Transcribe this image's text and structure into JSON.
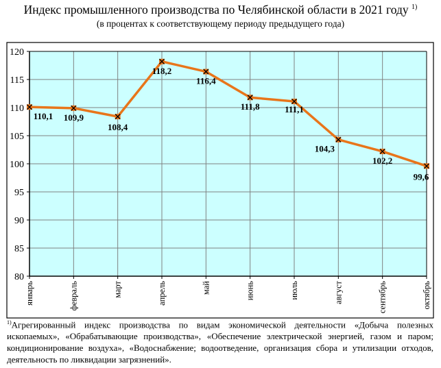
{
  "chart_data": {
    "type": "line",
    "title": "Индекс промышленного производства по Челябинской области в 2021 году",
    "title_footnote_mark": "1)",
    "subtitle": "(в процентах к соответствующему периоду предыдущего года)",
    "categories": [
      "январь",
      "февраль",
      "март",
      "апрель",
      "май",
      "июнь",
      "июль",
      "август",
      "сентябрь",
      "октябрь"
    ],
    "values": [
      110.1,
      109.9,
      108.4,
      118.2,
      116.4,
      111.8,
      111.1,
      104.3,
      102.2,
      99.6
    ],
    "data_labels": [
      "110,1",
      "109,9",
      "108,4",
      "118,2",
      "116,4",
      "111,8",
      "111,1",
      "104,3",
      "102,2",
      "99,6"
    ],
    "ylim": [
      80,
      120
    ],
    "yticks": [
      80,
      85,
      90,
      95,
      100,
      105,
      110,
      115,
      120
    ],
    "grid": true,
    "xlabel": "",
    "ylabel": "",
    "colors": {
      "line": "#e8751a",
      "plot_bg": "#ccffff",
      "grid": "#808080",
      "marker": "#000000"
    }
  },
  "footnote": {
    "mark": "1)",
    "text": "Агрегированный индекс производства по видам экономической деятельности «Добыча полезных ископаемых», «Обрабатывающие производства», «Обеспечение электрической энергией, газом и паром; кондиционирование воздуха», «Водоснабжение; водоотведение, организация сбора и утилизации отходов, деятельность по ликвидации загрязнений»."
  }
}
